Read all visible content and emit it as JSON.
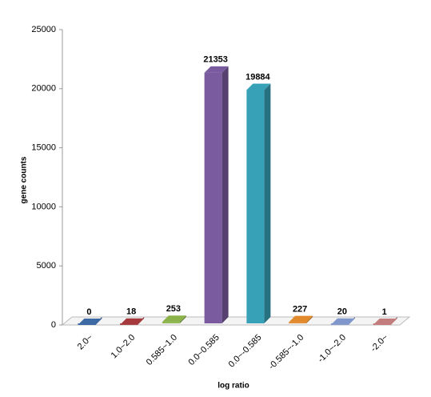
{
  "chart_data": {
    "type": "bar3d",
    "x_label": "log ratio",
    "y_label": "gene counts",
    "categories": [
      "2.0~",
      "1.0~2.0",
      "0.585~1.0",
      "0.0~0.585",
      "0.0~-0.585",
      "-0.585~-1.0",
      "-1.0~-2.0",
      "-2.0~"
    ],
    "values": [
      0,
      18,
      253,
      21353,
      19884,
      227,
      20,
      1
    ],
    "colors": [
      "#3d6aa3",
      "#a5393b",
      "#8cb24a",
      "#7b5b9f",
      "#37a1b8",
      "#e2892b",
      "#7f97cb",
      "#c47d7d"
    ],
    "ylim": [
      0,
      25000
    ],
    "yticks": [
      0,
      5000,
      10000,
      15000,
      20000,
      25000
    ]
  }
}
